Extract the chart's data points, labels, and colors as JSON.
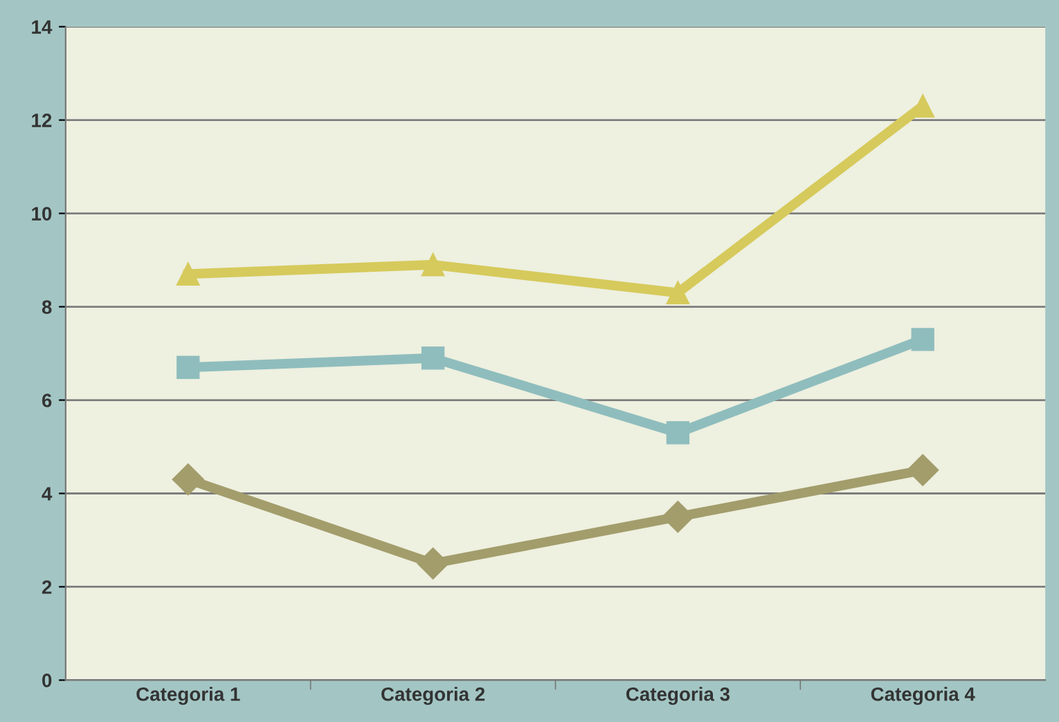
{
  "chart_data": {
    "type": "line",
    "categories": [
      "Categoria 1",
      "Categoria 2",
      "Categoria 3",
      "Categoria 4"
    ],
    "series": [
      {
        "color": "#a39d6c",
        "marker": "diamond",
        "values": [
          4.3,
          2.5,
          3.5,
          4.5
        ]
      },
      {
        "color": "#8fbdbd",
        "marker": "square",
        "values": [
          6.7,
          6.9,
          5.3,
          7.3
        ]
      },
      {
        "color": "#d6ca5c",
        "marker": "triangle",
        "values": [
          8.7,
          8.9,
          8.3,
          12.3
        ]
      }
    ],
    "ylim": [
      0,
      14
    ],
    "yticks": [
      0,
      2,
      4,
      6,
      8,
      10,
      12,
      14
    ],
    "grid": "y",
    "legend": false,
    "line_style": "solid"
  }
}
